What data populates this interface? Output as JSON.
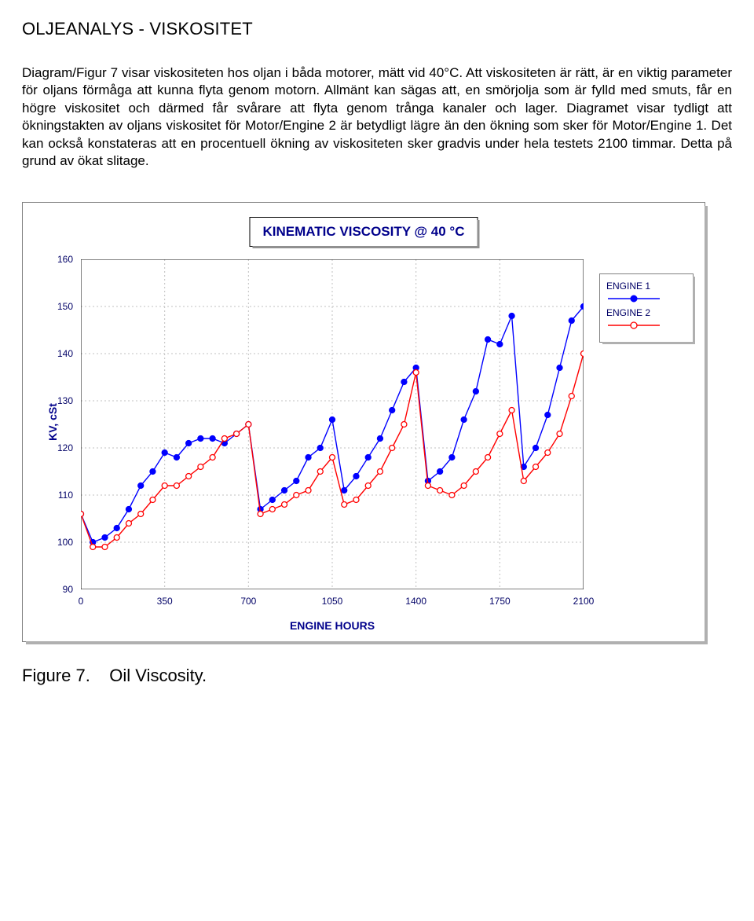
{
  "page": {
    "heading": "OLJEANALYS - VISKOSITET",
    "paragraph": "Diagram/Figur 7 visar viskositeten hos oljan i båda motorer, mätt vid 40°C. Att viskositeten är rätt, är en viktig parameter för oljans förmåga att kunna flyta genom motorn. Allmänt kan sägas att, en smörjolja som är fylld med smuts, får en högre viskositet och därmed får svårare att flyta genom trånga kanaler och lager. Diagramet visar tydligt att ökningstakten av oljans viskositet för Motor/Engine 2 är betydligt lägre än den ökning som sker för Motor/Engine 1. Det kan också konstateras att en procentuell ökning av viskositeten sker gradvis under hela testets 2100 timmar. Detta på grund av ökat slitage.",
    "figure_caption_prefix": "Figure 7.",
    "figure_caption_text": "Oil Viscosity."
  },
  "chart": {
    "type": "line",
    "title": "KINEMATIC VISCOSITY @ 40 °C",
    "xlabel": "ENGINE HOURS",
    "ylabel": "KV, cSt",
    "xlim": [
      0,
      2100
    ],
    "ylim": [
      90,
      160
    ],
    "xticks": [
      0,
      350,
      700,
      1050,
      1400,
      1750,
      2100
    ],
    "yticks": [
      90,
      100,
      110,
      120,
      130,
      140,
      150,
      160
    ],
    "background_color": "#ffffff",
    "grid_color": "#c0c0c0",
    "grid_dash": "2,3",
    "axis_color": "#000000",
    "label_color": "#00008b",
    "tick_color": "#000066",
    "title_fontsize": 17,
    "label_fontsize": 14,
    "tick_fontsize": 12,
    "line_width": 1.4,
    "marker_size": 3.5,
    "legend": {
      "position": "right",
      "items": [
        {
          "label": "ENGINE 1",
          "color": "#0000ff",
          "marker_fill": "#0000ff"
        },
        {
          "label": "ENGINE 2",
          "color": "#ff0000",
          "marker_fill": "#ffffff"
        }
      ]
    },
    "series": [
      {
        "name": "ENGINE 1",
        "color": "#0000ff",
        "marker_fill": "#0000ff",
        "marker_stroke": "#0000ff",
        "x": [
          0,
          50,
          100,
          150,
          200,
          250,
          300,
          350,
          400,
          450,
          500,
          550,
          600,
          650,
          700,
          750,
          800,
          850,
          900,
          950,
          1000,
          1050,
          1100,
          1150,
          1200,
          1250,
          1300,
          1350,
          1400,
          1450,
          1500,
          1550,
          1600,
          1650,
          1700,
          1750,
          1800,
          1850,
          1900,
          1950,
          2000,
          2050,
          2100
        ],
        "y": [
          106,
          100,
          101,
          103,
          107,
          112,
          115,
          119,
          118,
          121,
          122,
          122,
          121,
          123,
          125,
          107,
          109,
          111,
          113,
          118,
          120,
          126,
          111,
          114,
          118,
          122,
          128,
          134,
          137,
          113,
          115,
          118,
          126,
          132,
          143,
          142,
          148,
          116,
          120,
          127,
          137,
          147,
          150
        ]
      },
      {
        "name": "ENGINE 2",
        "color": "#ff0000",
        "marker_fill": "#ffffff",
        "marker_stroke": "#ff0000",
        "x": [
          0,
          50,
          100,
          150,
          200,
          250,
          300,
          350,
          400,
          450,
          500,
          550,
          600,
          650,
          700,
          750,
          800,
          850,
          900,
          950,
          1000,
          1050,
          1100,
          1150,
          1200,
          1250,
          1300,
          1350,
          1400,
          1450,
          1500,
          1550,
          1600,
          1650,
          1700,
          1750,
          1800,
          1850,
          1900,
          1950,
          2000,
          2050,
          2100
        ],
        "y": [
          106,
          99,
          99,
          101,
          104,
          106,
          109,
          112,
          112,
          114,
          116,
          118,
          122,
          123,
          125,
          106,
          107,
          108,
          110,
          111,
          115,
          118,
          108,
          109,
          112,
          115,
          120,
          125,
          136,
          112,
          111,
          110,
          112,
          115,
          118,
          123,
          128,
          113,
          116,
          119,
          123,
          131,
          140
        ]
      }
    ]
  }
}
